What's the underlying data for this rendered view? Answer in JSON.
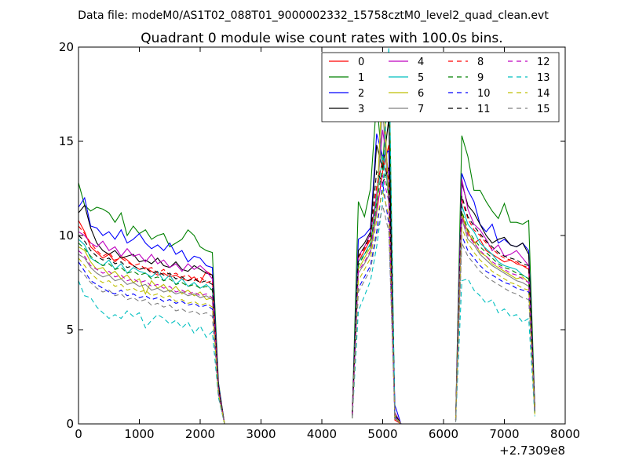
{
  "header": "Data file: modeM0/AS1T02_088T01_9000002332_15758cztM0_level2_quad_clean.evt",
  "chart_data": {
    "type": "line",
    "title": "Quadrant 0 module wise count rates with 100.0s bins.",
    "xlabel": "",
    "ylabel": "",
    "x_offset_label": "+2.7309e8",
    "xlim": [
      0,
      8000
    ],
    "ylim": [
      0,
      20
    ],
    "xticks": [
      "0",
      "1000",
      "2000",
      "3000",
      "4000",
      "5000",
      "6000",
      "7000",
      "8000"
    ],
    "yticks": [
      "0",
      "5",
      "10",
      "15",
      "20"
    ],
    "grid": false,
    "legend_position": "top-right",
    "segments": [
      {
        "x": [
          0,
          100,
          200,
          300,
          400,
          500,
          600,
          700,
          800,
          900,
          1000,
          1100,
          1200,
          1300,
          1400,
          1500,
          1600,
          1700,
          1800,
          1900,
          2000,
          2100,
          2200,
          2300,
          2400
        ]
      },
      {
        "x": [
          4500,
          4600,
          4700,
          4800,
          4900,
          5000,
          5100,
          5200,
          5300
        ]
      },
      {
        "x": [
          6200,
          6300,
          6400,
          6500,
          6600,
          6700,
          6800,
          6900,
          7000,
          7100,
          7200,
          7300,
          7400,
          7500
        ]
      }
    ],
    "series": [
      {
        "name": "0",
        "color": "#ff0000",
        "dash": "solid",
        "segments": [
          [
            10.8,
            10.2,
            9.4,
            9.1,
            8.8,
            9.0,
            8.6,
            8.9,
            8.7,
            8.4,
            8.2,
            8.3,
            8.1,
            7.9,
            8.0,
            7.8,
            7.9,
            7.7,
            7.6,
            7.8,
            7.5,
            8.1,
            7.9,
            2.0,
            0
          ],
          [
            0.5,
            8.6,
            9.2,
            9.8,
            11.2,
            13.4,
            14.8,
            0.2,
            0
          ],
          [
            0.2,
            11.0,
            10.2,
            9.6,
            9.8,
            9.2,
            9.0,
            8.8,
            8.6,
            8.7,
            8.5,
            8.4,
            8.2,
            0.8
          ]
        ]
      },
      {
        "name": "1",
        "color": "#008000",
        "dash": "solid",
        "segments": [
          [
            12.8,
            11.6,
            11.3,
            11.5,
            11.4,
            11.2,
            10.7,
            11.2,
            10.0,
            10.5,
            10.1,
            10.3,
            9.8,
            10.0,
            10.1,
            9.4,
            9.6,
            9.8,
            10.3,
            10.0,
            9.4,
            9.2,
            9.1,
            2.2,
            0
          ],
          [
            0.6,
            11.8,
            11.0,
            12.5,
            17.2,
            13.5,
            19.5,
            0.3,
            0
          ],
          [
            0.3,
            15.3,
            14.2,
            12.4,
            12.4,
            11.8,
            11.3,
            10.9,
            11.7,
            10.7,
            10.7,
            10.6,
            10.8,
            0.9
          ]
        ]
      },
      {
        "name": "2",
        "color": "#0000ff",
        "dash": "solid",
        "segments": [
          [
            11.5,
            12.0,
            10.5,
            10.4,
            10.0,
            10.2,
            9.8,
            10.3,
            9.6,
            9.8,
            10.1,
            9.6,
            9.3,
            9.5,
            9.2,
            9.6,
            9.0,
            9.2,
            8.6,
            8.9,
            8.8,
            8.4,
            8.3,
            2.1,
            0
          ],
          [
            0.6,
            9.8,
            10.0,
            10.4,
            15.4,
            14.2,
            14.5,
            1.0,
            0
          ],
          [
            0.3,
            13.3,
            12.4,
            11.8,
            10.6,
            10.2,
            10.6,
            9.6,
            9.8,
            9.5,
            9.4,
            9.6,
            9.2,
            0.8
          ]
        ]
      },
      {
        "name": "3",
        "color": "#000000",
        "dash": "solid",
        "segments": [
          [
            11.2,
            11.6,
            10.4,
            9.6,
            9.2,
            9.0,
            9.2,
            8.8,
            8.9,
            9.0,
            8.6,
            8.7,
            8.5,
            8.8,
            8.4,
            8.3,
            8.6,
            8.2,
            8.1,
            8.4,
            8.2,
            8.0,
            7.9,
            2.0,
            0
          ],
          [
            0.5,
            9.2,
            9.6,
            10.2,
            14.8,
            13.5,
            16.2,
            0.6,
            0
          ],
          [
            0.3,
            12.8,
            11.6,
            11.2,
            10.6,
            10.0,
            9.6,
            9.8,
            9.9,
            9.5,
            9.4,
            9.6,
            9.0,
            0.6
          ]
        ]
      },
      {
        "name": "4",
        "color": "#bf00bf",
        "dash": "solid",
        "segments": [
          [
            10.2,
            10.0,
            9.6,
            9.4,
            9.7,
            9.2,
            9.4,
            8.9,
            9.3,
            8.9,
            9.0,
            8.6,
            9.0,
            8.5,
            8.7,
            8.3,
            8.5,
            8.1,
            8.5,
            8.2,
            8.4,
            8.1,
            7.7,
            1.9,
            0
          ],
          [
            0.5,
            8.9,
            9.4,
            10.1,
            12.2,
            15.6,
            13.2,
            0.6,
            0
          ],
          [
            0.2,
            13.0,
            11.4,
            10.6,
            10.3,
            9.8,
            9.2,
            9.5,
            8.9,
            9.0,
            9.2,
            8.8,
            8.4,
            0.7
          ]
        ]
      },
      {
        "name": "5",
        "color": "#00bfbf",
        "dash": "solid",
        "segments": [
          [
            9.8,
            9.5,
            8.8,
            8.6,
            8.4,
            8.7,
            8.2,
            8.5,
            8.0,
            8.3,
            8.1,
            8.0,
            7.8,
            8.1,
            7.6,
            7.9,
            7.4,
            7.7,
            7.3,
            7.5,
            7.2,
            7.4,
            7.1,
            1.8,
            0
          ],
          [
            0.4,
            8.6,
            9.0,
            9.6,
            12.0,
            14.2,
            12.4,
            0.5,
            0
          ],
          [
            0.2,
            11.6,
            10.6,
            10.2,
            9.6,
            9.3,
            9.0,
            8.6,
            8.4,
            8.3,
            8.2,
            7.9,
            7.7,
            0.6
          ]
        ]
      },
      {
        "name": "6",
        "color": "#bfbf00",
        "dash": "solid",
        "segments": [
          [
            9.4,
            9.2,
            8.6,
            8.2,
            8.3,
            7.9,
            8.1,
            7.7,
            7.9,
            7.5,
            7.7,
            6.9,
            7.6,
            7.2,
            7.4,
            7.0,
            7.3,
            6.9,
            7.1,
            6.8,
            7.0,
            6.6,
            6.7,
            1.7,
            0
          ],
          [
            0.4,
            8.2,
            8.8,
            9.4,
            11.5,
            18.4,
            12.0,
            0.5,
            0
          ],
          [
            0.2,
            11.2,
            10.1,
            9.7,
            9.1,
            8.9,
            8.5,
            8.3,
            8.1,
            7.9,
            7.7,
            7.8,
            7.5,
            0.6
          ]
        ]
      },
      {
        "name": "7",
        "color": "#808080",
        "dash": "solid",
        "segments": [
          [
            9.0,
            8.8,
            8.3,
            8.0,
            7.8,
            7.9,
            7.6,
            7.7,
            7.4,
            7.5,
            7.3,
            7.4,
            7.1,
            7.2,
            7.0,
            7.1,
            6.9,
            7.0,
            6.8,
            6.9,
            6.7,
            6.8,
            6.6,
            1.7,
            0
          ],
          [
            0.4,
            8.0,
            8.5,
            9.1,
            11.2,
            16.8,
            11.6,
            0.4,
            0
          ],
          [
            0.2,
            10.9,
            9.8,
            9.5,
            9.0,
            8.7,
            8.4,
            8.2,
            8.0,
            7.8,
            7.6,
            7.5,
            7.3,
            0.6
          ]
        ]
      },
      {
        "name": "8",
        "color": "#ff0000",
        "dash": "dashed",
        "segments": [
          [
            10.5,
            10.1,
            9.6,
            9.2,
            8.9,
            9.1,
            8.7,
            8.8,
            8.6,
            8.4,
            8.5,
            8.2,
            8.3,
            8.0,
            8.2,
            7.9,
            8.0,
            7.8,
            7.9,
            7.6,
            7.8,
            7.5,
            7.6,
            1.9,
            0
          ],
          [
            0.5,
            8.8,
            9.3,
            9.9,
            12.6,
            14.0,
            13.0,
            0.5,
            0
          ],
          [
            0.2,
            11.9,
            10.9,
            10.3,
            10.0,
            9.6,
            9.3,
            9.0,
            8.8,
            8.7,
            8.6,
            8.4,
            8.3,
            0.7
          ]
        ]
      },
      {
        "name": "9",
        "color": "#008000",
        "dash": "dashed",
        "segments": [
          [
            9.6,
            9.3,
            8.9,
            8.6,
            8.4,
            8.5,
            8.2,
            8.3,
            8.0,
            8.1,
            7.9,
            8.0,
            7.7,
            7.8,
            7.6,
            7.7,
            7.4,
            7.5,
            7.3,
            7.4,
            7.2,
            7.3,
            7.1,
            1.8,
            0
          ],
          [
            0.4,
            8.4,
            9.0,
            9.5,
            11.8,
            13.6,
            12.2,
            0.5,
            0
          ],
          [
            0.2,
            11.3,
            10.3,
            9.8,
            9.4,
            9.1,
            8.8,
            8.5,
            8.3,
            8.2,
            8.0,
            7.9,
            7.7,
            0.6
          ]
        ]
      },
      {
        "name": "10",
        "color": "#0000ff",
        "dash": "dashed",
        "segments": [
          [
            8.6,
            8.1,
            7.6,
            7.4,
            7.2,
            7.0,
            6.9,
            7.1,
            6.8,
            6.9,
            6.7,
            6.8,
            6.6,
            6.7,
            6.5,
            6.6,
            6.4,
            6.5,
            6.3,
            6.4,
            6.2,
            6.3,
            6.1,
            1.6,
            0
          ],
          [
            0.3,
            7.2,
            7.8,
            8.4,
            10.2,
            12.8,
            10.6,
            0.4,
            0
          ],
          [
            0.2,
            10.0,
            9.2,
            8.8,
            8.4,
            8.1,
            7.9,
            7.7,
            7.5,
            7.4,
            7.2,
            7.1,
            7.0,
            0.5
          ]
        ]
      },
      {
        "name": "11",
        "color": "#000000",
        "dash": "dashed",
        "segments": [
          [
            10.0,
            9.7,
            9.2,
            8.9,
            8.7,
            8.8,
            8.5,
            8.6,
            8.3,
            8.4,
            8.2,
            8.3,
            8.0,
            8.1,
            7.9,
            8.0,
            7.7,
            7.8,
            7.6,
            7.7,
            7.5,
            7.6,
            7.4,
            1.9,
            0
          ],
          [
            0.5,
            8.9,
            9.4,
            10.0,
            13.4,
            12.8,
            13.6,
            0.5,
            0
          ],
          [
            0.2,
            12.1,
            11.0,
            10.5,
            10.1,
            9.7,
            9.4,
            9.1,
            8.9,
            8.8,
            8.7,
            8.5,
            8.4,
            0.7
          ]
        ]
      },
      {
        "name": "12",
        "color": "#bf00bf",
        "dash": "dashed",
        "segments": [
          [
            9.2,
            8.9,
            8.4,
            8.2,
            8.0,
            8.1,
            7.8,
            7.9,
            7.6,
            7.7,
            7.5,
            7.6,
            7.3,
            7.4,
            7.2,
            7.3,
            7.0,
            7.1,
            6.9,
            7.0,
            6.8,
            6.9,
            6.7,
            1.7,
            0
          ],
          [
            0.4,
            8.1,
            8.6,
            9.2,
            11.4,
            13.2,
            11.8,
            0.4,
            0
          ],
          [
            0.2,
            11.0,
            10.0,
            9.6,
            9.2,
            8.9,
            8.6,
            8.4,
            8.2,
            8.0,
            7.9,
            7.7,
            7.5,
            0.6
          ]
        ]
      },
      {
        "name": "13",
        "color": "#00bfbf",
        "dash": "dashed",
        "segments": [
          [
            7.6,
            6.8,
            6.7,
            6.2,
            5.9,
            5.6,
            5.8,
            5.6,
            6.0,
            5.7,
            5.9,
            5.1,
            5.5,
            5.8,
            5.6,
            5.3,
            5.5,
            5.1,
            5.4,
            4.8,
            5.2,
            4.6,
            4.9,
            1.4,
            0
          ],
          [
            0.3,
            6.0,
            6.8,
            7.6,
            9.4,
            11.8,
            20.0,
            0.3,
            0
          ],
          [
            0.1,
            7.6,
            7.7,
            7.1,
            6.8,
            6.4,
            6.6,
            5.9,
            6.1,
            5.7,
            5.8,
            5.4,
            5.6,
            0.4
          ]
        ]
      },
      {
        "name": "14",
        "color": "#bfbf00",
        "dash": "dashed",
        "segments": [
          [
            8.8,
            8.4,
            8.0,
            7.7,
            7.5,
            7.6,
            7.3,
            7.4,
            7.1,
            7.2,
            7.0,
            7.1,
            6.8,
            6.9,
            6.7,
            6.8,
            6.5,
            6.6,
            6.4,
            6.5,
            6.3,
            6.4,
            6.2,
            1.6,
            0
          ],
          [
            0.3,
            7.6,
            8.2,
            8.8,
            10.8,
            12.4,
            11.0,
            0.4,
            0
          ],
          [
            0.2,
            10.4,
            9.6,
            9.1,
            8.7,
            8.4,
            8.1,
            7.9,
            7.7,
            7.5,
            7.4,
            7.2,
            7.1,
            0.5
          ]
        ]
      },
      {
        "name": "15",
        "color": "#808080",
        "dash": "dashed",
        "segments": [
          [
            8.2,
            7.9,
            7.5,
            7.2,
            7.0,
            7.1,
            6.8,
            6.9,
            6.6,
            6.7,
            6.5,
            6.6,
            6.3,
            6.4,
            6.2,
            6.3,
            6.0,
            6.1,
            5.9,
            6.0,
            5.8,
            5.9,
            5.7,
            1.5,
            0
          ],
          [
            0.3,
            7.0,
            7.6,
            8.2,
            10.0,
            11.6,
            10.2,
            0.3,
            0
          ],
          [
            0.1,
            9.6,
            8.9,
            8.5,
            8.1,
            7.8,
            7.6,
            7.4,
            7.2,
            7.0,
            6.9,
            6.7,
            6.6,
            0.5
          ]
        ]
      }
    ]
  }
}
